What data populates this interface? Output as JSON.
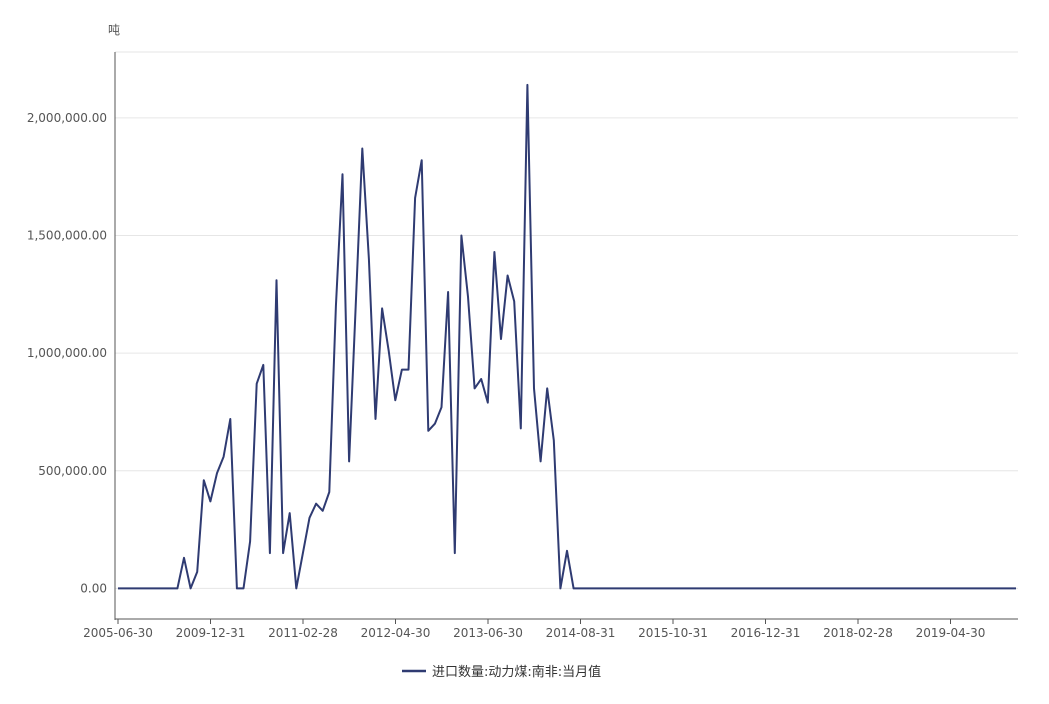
{
  "chart_data": {
    "type": "line",
    "ylabel": "吨",
    "ylim": [
      -130000,
      2280000
    ],
    "y_ticks": [
      {
        "value": 0,
        "label": "0.00"
      },
      {
        "value": 500000,
        "label": "500,000.00"
      },
      {
        "value": 1000000,
        "label": "1,000,000.00"
      },
      {
        "value": 1500000,
        "label": "1,500,000.00"
      },
      {
        "value": 2000000,
        "label": "2,000,000.00"
      }
    ],
    "x_ticks": [
      "2005-06-30",
      "2009-12-31",
      "2011-02-28",
      "2012-04-30",
      "2013-06-30",
      "2014-08-31",
      "2015-10-31",
      "2016-12-31",
      "2018-02-28",
      "2019-04-30"
    ],
    "grid": true,
    "legend_position": "bottom-center",
    "color": "#2f3b72",
    "series": [
      {
        "name": "进口数量:动力煤:南非:当月值",
        "values": [
          0,
          0,
          0,
          0,
          0,
          0,
          0,
          0,
          0,
          0,
          130000,
          0,
          70000,
          460000,
          370000,
          490000,
          560000,
          720000,
          0,
          0,
          200000,
          870000,
          950000,
          150000,
          1310000,
          150000,
          320000,
          0,
          150000,
          300000,
          360000,
          330000,
          410000,
          1200000,
          1760000,
          540000,
          1200000,
          1870000,
          1400000,
          720000,
          1190000,
          1010000,
          800000,
          930000,
          930000,
          1660000,
          1820000,
          670000,
          700000,
          770000,
          1260000,
          150000,
          1500000,
          1240000,
          850000,
          890000,
          790000,
          1430000,
          1060000,
          1330000,
          1220000,
          680000,
          2140000,
          850000,
          540000,
          850000,
          630000,
          0,
          160000,
          0,
          0,
          0,
          0,
          0,
          0,
          0,
          0,
          0,
          0,
          0,
          0,
          0,
          0,
          0,
          0,
          0,
          0,
          0,
          0,
          0,
          0,
          0,
          0,
          0,
          0,
          0,
          0,
          0,
          0,
          0,
          0,
          0,
          0,
          0,
          0,
          0,
          0,
          0,
          0,
          0,
          0,
          0,
          0,
          0,
          0,
          0,
          0,
          0,
          0,
          0,
          0,
          0,
          0,
          0,
          0,
          0,
          0,
          0,
          0,
          0,
          0,
          0,
          0,
          0,
          0,
          0,
          0
        ]
      }
    ]
  }
}
